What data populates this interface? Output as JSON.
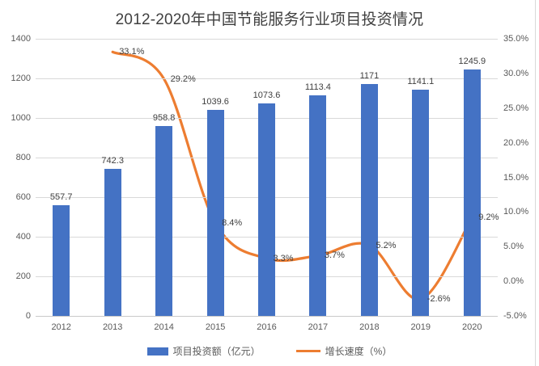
{
  "chart_data": {
    "type": "combo-bar-line",
    "title": "2012-2020年中国节能服务行业项目投资情况",
    "categories": [
      "2012",
      "2013",
      "2014",
      "2015",
      "2016",
      "2017",
      "2018",
      "2019",
      "2020"
    ],
    "series": [
      {
        "name": "项目投资额（亿元）",
        "type": "bar",
        "axis": "left",
        "color": "#4472C4",
        "values": [
          557.7,
          742.3,
          958.8,
          1039.6,
          1073.6,
          1113.4,
          1171,
          1141.1,
          1245.9
        ],
        "labels": [
          "557.7",
          "742.3",
          "958.8",
          "1039.6",
          "1073.6",
          "1113.4",
          "1171",
          "1141.1",
          "1245.9"
        ]
      },
      {
        "name": "增长速度（%）",
        "type": "line",
        "axis": "right",
        "color": "#ED7D31",
        "values": [
          null,
          33.1,
          29.2,
          8.4,
          3.3,
          3.7,
          5.2,
          -2.6,
          9.2
        ],
        "labels": [
          "",
          "33.1%",
          "29.2%",
          "8.4%",
          "3.3%",
          "3.7%",
          "5.2%",
          "-2.6%",
          "9.2%"
        ]
      }
    ],
    "left_axis": {
      "min": 0,
      "max": 1400,
      "step": 200,
      "ticks": [
        "0",
        "200",
        "400",
        "600",
        "800",
        "1000",
        "1200",
        "1400"
      ]
    },
    "right_axis": {
      "min": -5,
      "max": 35,
      "step": 5,
      "ticks": [
        "-5.0%",
        "0.0%",
        "5.0%",
        "10.0%",
        "15.0%",
        "20.0%",
        "25.0%",
        "30.0%",
        "35.0%"
      ]
    },
    "layout_hints": {
      "grid": "horizontal",
      "legend_position": "bottom",
      "smooth_line": true
    },
    "colors": {
      "background": "#FFFFFF",
      "gridline": "#D9D9D9",
      "axis_line": "#C9C9C9",
      "tick_text": "#595959",
      "label_text": "#404040",
      "title_text": "#404040",
      "right_border": "#D9D9D9"
    }
  }
}
